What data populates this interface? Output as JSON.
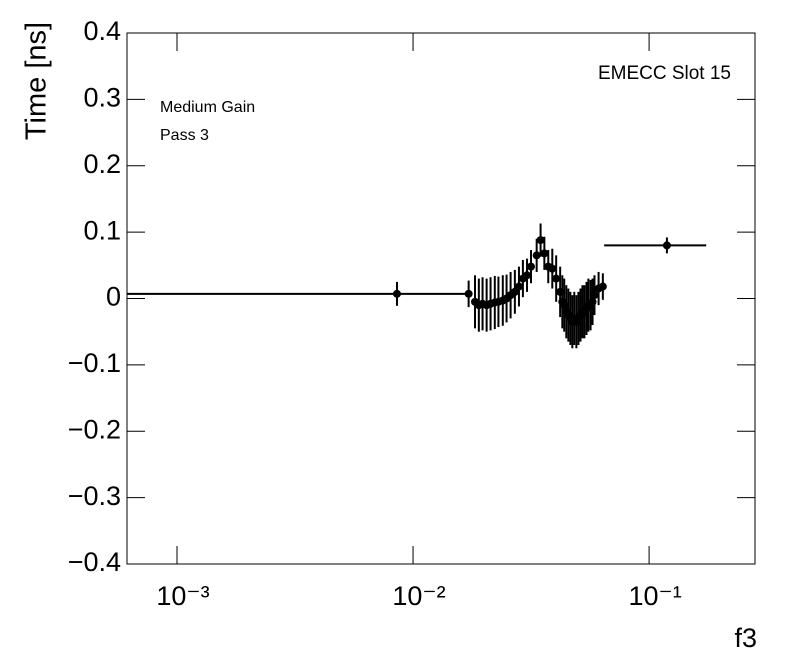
{
  "chart_data": {
    "type": "scatter",
    "annotations": [
      "EMECC Slot 15",
      "Medium Gain",
      "Pass 3"
    ],
    "x_label": "f3",
    "y_label": "Time [ns]",
    "log_x": true,
    "color": "#000000",
    "xlim": [
      0.000614,
      0.281
    ],
    "ylim": [
      -0.4,
      0.4
    ],
    "xticks": [
      {
        "value": 0.001,
        "label": "10⁻³"
      },
      {
        "value": 0.01,
        "label": "10⁻²"
      },
      {
        "value": 0.1,
        "label": "10⁻¹"
      }
    ],
    "yticks": [
      {
        "value": -0.4,
        "label": "−0.4"
      },
      {
        "value": -0.3,
        "label": "−0.3"
      },
      {
        "value": -0.2,
        "label": "−0.2"
      },
      {
        "value": -0.1,
        "label": "−0.1"
      },
      0,
      0.1,
      0.2,
      0.3,
      0.4
    ],
    "x": [
      0.00855,
      0.0172,
      0.0183,
      0.019,
      0.0197,
      0.0205,
      0.0213,
      0.0222,
      0.023,
      0.024,
      0.0249,
      0.0259,
      0.027,
      0.0281,
      0.0292,
      0.0304,
      0.0316,
      0.0334,
      0.0347,
      0.036,
      0.0374,
      0.0389,
      0.0404,
      0.042,
      0.0429,
      0.0437,
      0.0446,
      0.0455,
      0.0464,
      0.0473,
      0.0482,
      0.0492,
      0.0502,
      0.0512,
      0.0522,
      0.0532,
      0.0543,
      0.0553,
      0.0565,
      0.0576,
      0.0587,
      0.0611,
      0.0637,
      0.119
    ],
    "values": [
      0.007,
      0.007,
      -0.005,
      -0.01,
      -0.008,
      -0.01,
      -0.008,
      -0.006,
      -0.005,
      -0.003,
      0.0,
      0.005,
      0.01,
      0.018,
      0.03,
      0.035,
      0.048,
      0.065,
      0.088,
      0.068,
      0.048,
      0.045,
      0.03,
      0.01,
      -0.005,
      -0.01,
      -0.02,
      -0.025,
      -0.03,
      -0.035,
      -0.03,
      -0.035,
      -0.03,
      -0.025,
      -0.02,
      -0.02,
      -0.015,
      -0.01,
      -0.01,
      -0.005,
      0.005,
      0.015,
      0.018,
      0.08
    ],
    "yerr": [
      0.018,
      0.02,
      0.04,
      0.04,
      0.04,
      0.04,
      0.04,
      0.04,
      0.038,
      0.038,
      0.036,
      0.035,
      0.033,
      0.03,
      0.028,
      0.025,
      0.025,
      0.025,
      0.025,
      0.025,
      0.025,
      0.03,
      0.035,
      0.038,
      0.04,
      0.04,
      0.04,
      0.04,
      0.04,
      0.04,
      0.04,
      0.04,
      0.04,
      0.04,
      0.04,
      0.04,
      0.04,
      0.04,
      0.038,
      0.035,
      0.03,
      0.025,
      0.02,
      0.012
    ],
    "xerr_low": [
      0.00795,
      0,
      0,
      0,
      0,
      0,
      0,
      0,
      0,
      0,
      0,
      0,
      0,
      0,
      0,
      0,
      0,
      0,
      0,
      0,
      0,
      0,
      0,
      0,
      0,
      0,
      0,
      0,
      0,
      0,
      0,
      0,
      0,
      0,
      0,
      0,
      0,
      0,
      0,
      0,
      0,
      0,
      0,
      0.0545
    ],
    "xerr_high": [
      0.00865,
      0,
      0,
      0,
      0,
      0,
      0,
      0,
      0,
      0,
      0,
      0,
      0,
      0,
      0,
      0,
      0,
      0,
      0,
      0,
      0,
      0,
      0,
      0,
      0,
      0,
      0,
      0,
      0,
      0,
      0,
      0,
      0,
      0,
      0,
      0,
      0,
      0,
      0,
      0,
      0,
      0,
      0,
      0.0556
    ]
  }
}
